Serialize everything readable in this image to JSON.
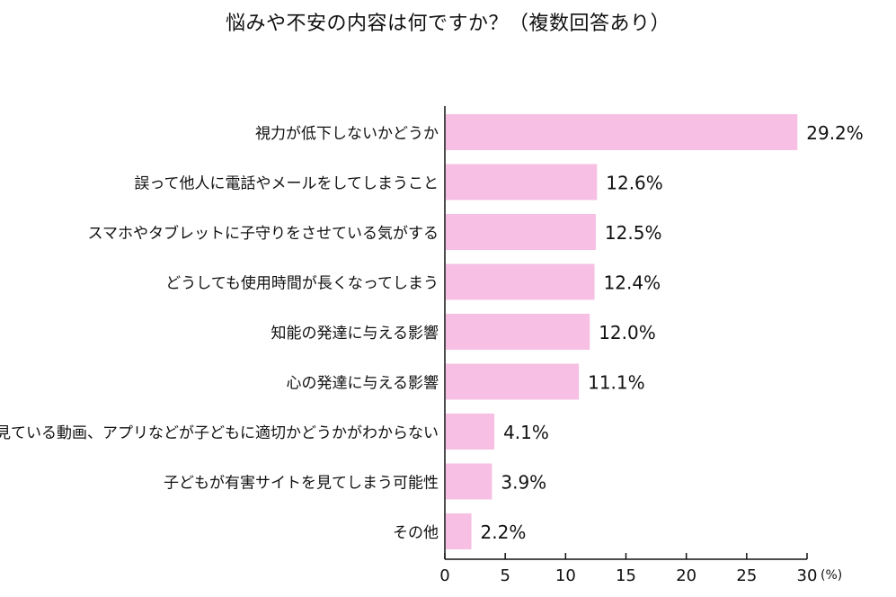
{
  "chart_data": {
    "type": "bar",
    "orientation": "horizontal",
    "title": "悩みや不安の内容は何ですか？（複数回答あり）",
    "categories": [
      "視力が低下しないかどうか",
      "誤って他人に電話やメールをしてしまうこと",
      "スマホやタブレットに子守りをさせている気がする",
      "どうしても使用時間が長くなってしまう",
      "知能の発達に与える影響",
      "心の発達に与える影響",
      "見ている動画、アプリなどが子どもに適切かどうかがわからない",
      "子どもが有害サイトを見てしまう可能性",
      "その他"
    ],
    "values": [
      29.2,
      12.6,
      12.5,
      12.4,
      12.0,
      11.1,
      4.1,
      3.9,
      2.2
    ],
    "value_labels": [
      "29.2%",
      "12.6%",
      "12.5%",
      "12.4%",
      "12.0%",
      "11.1%",
      "4.1%",
      "3.9%",
      "2.2%"
    ],
    "xlim": [
      0,
      30
    ],
    "xticks": [
      0,
      5,
      10,
      15,
      20,
      25,
      30
    ],
    "xunit": "(%)",
    "grid": false,
    "bar_color": "#f6bfe3",
    "axis_color": "#111111"
  }
}
